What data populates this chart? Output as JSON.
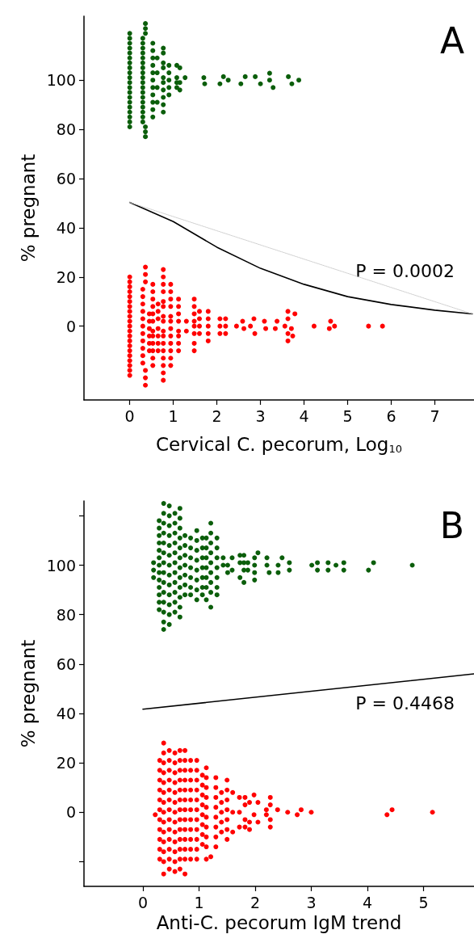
{
  "chart_data": [
    {
      "type": "scatter",
      "xlabel": "Cervical C. pecorum, Log$_{10}$",
      "ylabel": "% pregnant",
      "xlim": [
        -1.05,
        7.9
      ],
      "ylim": [
        -30,
        126
      ],
      "xticks": [
        0,
        1,
        2,
        3,
        4,
        5,
        6,
        7
      ],
      "yticks": [
        0,
        20,
        40,
        60,
        80,
        100
      ],
      "grid": false,
      "marker": "circle",
      "annotations": [
        "A",
        "P = 0.0002"
      ],
      "series": [
        {
          "color": "#0b5e0b",
          "x": [
            0,
            0,
            0,
            0,
            0,
            0,
            0,
            0,
            0,
            0,
            0,
            0,
            0,
            0,
            0,
            0,
            0,
            0,
            0,
            0,
            0.3,
            0.3,
            0.3,
            0.3,
            0.3,
            0.3,
            0.3,
            0.3,
            0.3,
            0.3,
            0.3,
            0.3,
            0.3,
            0.3,
            0.3,
            0.3,
            0.3,
            0.3,
            0.36,
            0.36,
            0.36,
            0.36,
            0.36,
            0.36,
            0.53,
            0.53,
            0.53,
            0.53,
            0.53,
            0.53,
            0.53,
            0.53,
            0.53,
            0.53,
            0.53,
            0.63,
            0.63,
            0.63,
            0.63,
            0.77,
            0.77,
            0.77,
            0.77,
            0.77,
            0.77,
            0.77,
            0.77,
            0.77,
            0.77,
            0.9,
            0.9,
            0.9,
            0.9,
            0.9,
            1.08,
            1.08,
            1.08,
            1.08,
            1.15,
            1.15,
            1.15,
            1.27,
            1.7,
            1.72,
            2.07,
            2.15,
            2.26,
            2.55,
            2.65,
            2.88,
            3.0,
            3.21,
            3.21,
            3.29,
            3.64,
            3.72,
            3.88
          ],
          "values": [
            119,
            117,
            115,
            113,
            111,
            109,
            107,
            105,
            103,
            101,
            99,
            97,
            95,
            93,
            91,
            89,
            87,
            85,
            83,
            81,
            117,
            115,
            113,
            111,
            109,
            107,
            105,
            103,
            101,
            99,
            97,
            95,
            93,
            91,
            89,
            87,
            85,
            83,
            123,
            121,
            119,
            81,
            79,
            77,
            115,
            112,
            109,
            106,
            103,
            100,
            97,
            94,
            91,
            88,
            85,
            109,
            103,
            97,
            91,
            113,
            111,
            107,
            105,
            101,
            99,
            96,
            93,
            90,
            87,
            106,
            103,
            100,
            97,
            94,
            106,
            101,
            99,
            97,
            105,
            99,
            96,
            101,
            101,
            98.5,
            98.5,
            101.4,
            100,
            98.5,
            101.4,
            101.4,
            98.5,
            102.8,
            100,
            97,
            101.4,
            98.5,
            100
          ]
        },
        {
          "color": "#ff0000",
          "x": [
            0,
            0,
            0,
            0,
            0,
            0,
            0,
            0,
            0,
            0,
            0,
            0,
            0,
            0,
            0,
            0,
            0,
            0,
            0,
            0,
            0,
            0.3,
            0.3,
            0.3,
            0.3,
            0.3,
            0.3,
            0.3,
            0.3,
            0.3,
            0.3,
            0.3,
            0.36,
            0.36,
            0.36,
            0.36,
            0.36,
            0.36,
            0.45,
            0.45,
            0.45,
            0.45,
            0.45,
            0.45,
            0.53,
            0.53,
            0.53,
            0.53,
            0.53,
            0.53,
            0.53,
            0.53,
            0.53,
            0.53,
            0.53,
            0.53,
            0.65,
            0.65,
            0.65,
            0.65,
            0.65,
            0.65,
            0.65,
            0.77,
            0.77,
            0.77,
            0.77,
            0.77,
            0.77,
            0.77,
            0.77,
            0.77,
            0.77,
            0.77,
            0.77,
            0.77,
            0.77,
            0.77,
            0.77,
            0.94,
            0.94,
            0.94,
            0.94,
            0.94,
            0.94,
            0.94,
            0.94,
            0.94,
            0.94,
            0.94,
            0.94,
            1.12,
            1.12,
            1.12,
            1.12,
            1.12,
            1.12,
            1.12,
            1.12,
            1.3,
            1.3,
            1.48,
            1.48,
            1.48,
            1.48,
            1.48,
            1.48,
            1.48,
            1.48,
            1.6,
            1.6,
            1.6,
            1.6,
            1.8,
            1.8,
            1.8,
            1.8,
            1.8,
            2.07,
            2.07,
            2.07,
            2.2,
            2.2,
            2.2,
            2.45,
            2.59,
            2.62,
            2.77,
            2.85,
            2.87,
            3.09,
            3.12,
            3.34,
            3.38,
            3.56,
            3.63,
            3.63,
            3.71,
            3.63,
            3.63,
            3.74,
            3.79,
            4.23,
            4.58,
            4.61,
            4.7,
            5.48,
            5.8
          ],
          "values": [
            20,
            18,
            16,
            14,
            12,
            10,
            8,
            6,
            4,
            2,
            0,
            -2,
            -4,
            -6,
            -8,
            -10,
            -12,
            -14,
            -16,
            -18,
            -20,
            15,
            12,
            9,
            6,
            3,
            0,
            -3,
            -6,
            -9,
            -12,
            -15,
            24,
            21,
            18,
            -18,
            -21,
            -24,
            5,
            2,
            -1,
            -4,
            -7,
            -10,
            17,
            14,
            11,
            8,
            5,
            2,
            -2,
            -4,
            -7,
            -10,
            -13,
            -16,
            9,
            6,
            3,
            -1,
            -4,
            -7,
            -10,
            23,
            20,
            17,
            14,
            10,
            8,
            4,
            2,
            -2,
            -4,
            -7,
            -10,
            -13,
            -16,
            -19,
            -22,
            17,
            14,
            11,
            8,
            4,
            2,
            -1,
            -4,
            -7,
            -10,
            -13,
            -16,
            11,
            8,
            5,
            2,
            -2,
            -4,
            -7,
            -10,
            2,
            -2,
            11,
            8,
            5,
            2,
            0,
            -3,
            -7,
            -10,
            6,
            3,
            0,
            -3,
            6,
            3,
            0,
            -3,
            -6,
            3,
            0,
            -3,
            3,
            0,
            -3,
            0,
            2,
            -1,
            0,
            3,
            -3,
            2,
            -1,
            -1,
            2,
            0,
            6,
            3,
            -1,
            -3,
            -6,
            -4,
            5,
            0,
            -1,
            2,
            0,
            0,
            0
          ]
        },
        {
          "type": "line",
          "color": "#000000",
          "x": [
            0,
            1,
            2,
            3,
            4,
            5,
            6,
            7,
            7.86
          ],
          "values": [
            50.3,
            42.5,
            32.1,
            23.5,
            17,
            12,
            8.8,
            6.5,
            5
          ],
          "marker": "none",
          "line_style": "solid"
        },
        {
          "type": "line",
          "color": "#cccccc",
          "x": [
            0,
            7.86
          ],
          "values": [
            50.3,
            5
          ],
          "marker": "none",
          "line_style": "dotted"
        }
      ]
    },
    {
      "type": "scatter",
      "xlabel": "Anti-C. pecorum IgM trend",
      "ylabel": "% pregnant",
      "xlim": [
        -1.05,
        5.9
      ],
      "ylim": [
        -30,
        126
      ],
      "xticks": [
        0,
        1,
        2,
        3,
        4,
        5
      ],
      "yticks": [
        {
          "value": -20,
          "label": null
        },
        0,
        20,
        40,
        60,
        80,
        100,
        {
          "value": 120,
          "label": null
        }
      ],
      "grid": false,
      "marker": "circle",
      "annotations": [
        "B",
        "P = 0.4468"
      ],
      "series": [
        {
          "color": "#0b5e0b",
          "x": [
            0.19,
            0.19,
            0.19,
            0.29,
            0.29,
            0.29,
            0.29,
            0.29,
            0.29,
            0.29,
            0.29,
            0.29,
            0.29,
            0.29,
            0.29,
            0.29,
            0.37,
            0.37,
            0.37,
            0.37,
            0.37,
            0.37,
            0.37,
            0.37,
            0.37,
            0.37,
            0.37,
            0.37,
            0.37,
            0.37,
            0.47,
            0.47,
            0.47,
            0.47,
            0.47,
            0.47,
            0.47,
            0.47,
            0.47,
            0.47,
            0.47,
            0.47,
            0.47,
            0.57,
            0.57,
            0.57,
            0.57,
            0.57,
            0.57,
            0.57,
            0.57,
            0.57,
            0.57,
            0.57,
            0.66,
            0.66,
            0.66,
            0.66,
            0.66,
            0.66,
            0.66,
            0.66,
            0.66,
            0.66,
            0.66,
            0.66,
            0.75,
            0.75,
            0.75,
            0.75,
            0.75,
            0.75,
            0.75,
            0.85,
            0.85,
            0.85,
            0.85,
            0.85,
            0.85,
            0.85,
            0.96,
            0.96,
            0.96,
            0.96,
            0.96,
            0.96,
            0.96,
            0.96,
            1.06,
            1.06,
            1.06,
            1.06,
            1.06,
            1.06,
            1.06,
            1.13,
            1.13,
            1.13,
            1.13,
            1.13,
            1.13,
            1.13,
            1.21,
            1.21,
            1.21,
            1.21,
            1.21,
            1.21,
            1.21,
            1.21,
            1.21,
            1.32,
            1.32,
            1.32,
            1.32,
            1.32,
            1.32,
            1.32,
            1.43,
            1.43,
            1.51,
            1.51,
            1.59,
            1.59,
            1.73,
            1.73,
            1.73,
            1.8,
            1.8,
            1.8,
            1.8,
            1.87,
            1.87,
            1.99,
            1.99,
            1.99,
            1.99,
            2.05,
            2.21,
            2.21,
            2.25,
            2.41,
            2.41,
            2.48,
            2.61,
            2.61,
            3.01,
            3.11,
            3.11,
            3.3,
            3.3,
            3.44,
            3.58,
            3.58,
            4.02,
            4.11,
            4.8
          ],
          "values": [
            101,
            98,
            95,
            118,
            115,
            112,
            109,
            106,
            103,
            100,
            97,
            94,
            91,
            88,
            85,
            82,
            125,
            121,
            117,
            113,
            109,
            105,
            101,
            97,
            93,
            89,
            85,
            81,
            77,
            74,
            124,
            120,
            116,
            112,
            108,
            104,
            100,
            96,
            92,
            88,
            84,
            80,
            76,
            121,
            117,
            113,
            109,
            105,
            101,
            97,
            93,
            89,
            85,
            81,
            123,
            119,
            115,
            111,
            107,
            103,
            99,
            95,
            91,
            87,
            83,
            79,
            112,
            108,
            104,
            100,
            96,
            92,
            88,
            111,
            107,
            103,
            99,
            95,
            91,
            88,
            114,
            110,
            106,
            102,
            98,
            94,
            90,
            86,
            111,
            107,
            103,
            99,
            95,
            91,
            88,
            111,
            107,
            103,
            99,
            95,
            91,
            86,
            117,
            113,
            109,
            105,
            101,
            97,
            93,
            89,
            83,
            111,
            107,
            103,
            99,
            95,
            91,
            88,
            103,
            100,
            100,
            97,
            103,
            98,
            104,
            101,
            95,
            104,
            101,
            98,
            93,
            101,
            98,
            103,
            100,
            97,
            94,
            105,
            103,
            100,
            97,
            100,
            97,
            103,
            101,
            98,
            100,
            101,
            98,
            101,
            98,
            100,
            101,
            98,
            98,
            101,
            100
          ]
        },
        {
          "color": "#ff0000",
          "x": [
            0.22,
            0.3,
            0.3,
            0.3,
            0.3,
            0.3,
            0.3,
            0.3,
            0.3,
            0.3,
            0.3,
            0.3,
            0.37,
            0.37,
            0.37,
            0.37,
            0.37,
            0.37,
            0.37,
            0.37,
            0.37,
            0.37,
            0.37,
            0.37,
            0.37,
            0.37,
            0.47,
            0.47,
            0.47,
            0.47,
            0.47,
            0.47,
            0.47,
            0.47,
            0.47,
            0.47,
            0.47,
            0.47,
            0.47,
            0.57,
            0.57,
            0.57,
            0.57,
            0.57,
            0.57,
            0.57,
            0.57,
            0.57,
            0.57,
            0.57,
            0.57,
            0.57,
            0.66,
            0.66,
            0.66,
            0.66,
            0.66,
            0.66,
            0.66,
            0.66,
            0.66,
            0.66,
            0.66,
            0.66,
            0.66,
            0.75,
            0.75,
            0.75,
            0.75,
            0.75,
            0.75,
            0.75,
            0.75,
            0.75,
            0.75,
            0.75,
            0.75,
            0.75,
            0.85,
            0.85,
            0.85,
            0.85,
            0.85,
            0.85,
            0.85,
            0.85,
            0.85,
            0.85,
            0.85,
            0.96,
            0.96,
            0.96,
            0.96,
            0.96,
            0.96,
            0.96,
            0.96,
            0.96,
            0.96,
            0.96,
            1.06,
            1.06,
            1.06,
            1.06,
            1.06,
            1.06,
            1.06,
            1.06,
            1.13,
            1.13,
            1.13,
            1.13,
            1.13,
            1.13,
            1.13,
            1.13,
            1.13,
            1.13,
            1.21,
            1.3,
            1.3,
            1.3,
            1.3,
            1.3,
            1.3,
            1.3,
            1.3,
            1.4,
            1.4,
            1.4,
            1.4,
            1.4,
            1.5,
            1.5,
            1.5,
            1.5,
            1.5,
            1.5,
            1.5,
            1.6,
            1.6,
            1.6,
            1.72,
            1.72,
            1.72,
            1.82,
            1.82,
            1.82,
            1.82,
            1.9,
            1.9,
            1.9,
            1.98,
            1.98,
            2.05,
            2.05,
            2.2,
            2.2,
            2.27,
            2.27,
            2.27,
            2.27,
            2.4,
            2.58,
            2.75,
            2.82,
            3.0,
            4.35,
            4.44,
            5.16
          ],
          "values": [
            -1,
            21,
            17,
            13,
            9,
            5,
            1,
            -3,
            -7,
            -11,
            -15,
            -19,
            28,
            24,
            20,
            16,
            12,
            8,
            4,
            0,
            -4,
            -8,
            -12,
            -16,
            -20,
            -25,
            25,
            21,
            17,
            13,
            9,
            5,
            1,
            -3,
            -7,
            -11,
            -15,
            -19,
            -23,
            24,
            20,
            16,
            12,
            8,
            4,
            0,
            -4,
            -8,
            -12,
            -16,
            -20,
            -24,
            25,
            21,
            17,
            13,
            9,
            5,
            1,
            -3,
            -7,
            -11,
            -15,
            -19,
            -23,
            25,
            21,
            17,
            13,
            9,
            5,
            1,
            -3,
            -7,
            -11,
            -15,
            -19,
            -25,
            21,
            17,
            13,
            9,
            5,
            1,
            -3,
            -7,
            -11,
            -15,
            -19,
            21,
            17,
            13,
            9,
            5,
            1,
            -3,
            -7,
            -11,
            -15,
            -19,
            15,
            11,
            7,
            3,
            -1,
            -5,
            -9,
            -13,
            18,
            14,
            10,
            6,
            2,
            -2,
            -6,
            -10,
            -14,
            -19,
            -18,
            14,
            10,
            6,
            2,
            -2,
            -6,
            -10,
            -14,
            8,
            4,
            0,
            -4,
            -8,
            13,
            9,
            5,
            1,
            -3,
            -7,
            -11,
            8,
            0,
            -8,
            6,
            0,
            -6,
            6,
            3,
            -3,
            -6,
            4,
            -4,
            -7,
            7,
            -1,
            4,
            -4,
            1,
            -1,
            6,
            3,
            -3,
            -6,
            1,
            0,
            -1,
            1,
            0,
            -1,
            1,
            0
          ]
        },
        {
          "type": "line",
          "color": "#000000",
          "x": [
            0,
            5.9
          ],
          "values": [
            41.7,
            56
          ],
          "marker": "none",
          "line_style": "solid"
        }
      ]
    }
  ]
}
